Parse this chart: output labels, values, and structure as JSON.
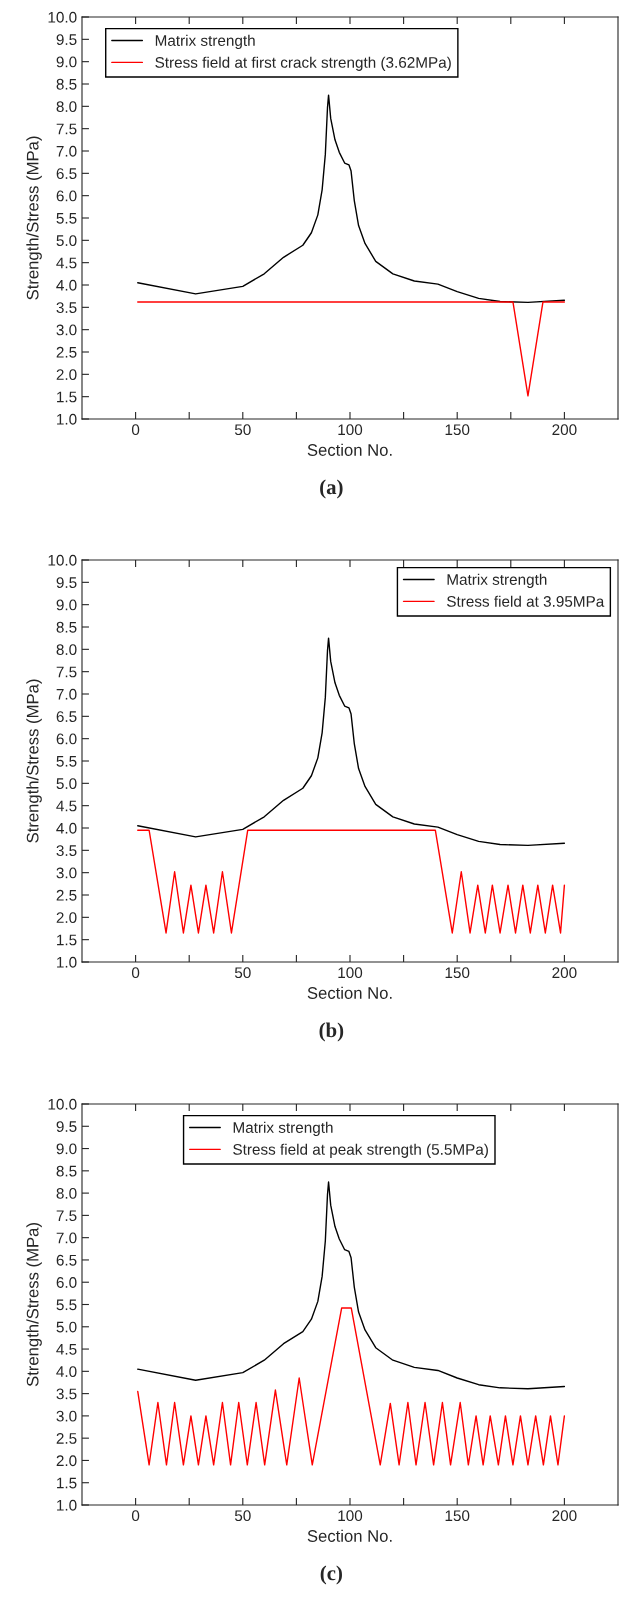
{
  "chart_data": [
    {
      "type": "line",
      "xlabel": "Section No.",
      "ylabel": "Strength/Stress (MPa)",
      "annotations": [
        "(a)"
      ],
      "legend": "top left",
      "xlim": [
        -25,
        225
      ],
      "ylim": [
        1,
        10
      ],
      "xticks": [
        0,
        {
          "value": 25,
          "label": null
        },
        50,
        {
          "value": 75,
          "label": null
        },
        100,
        {
          "value": 125,
          "label": null
        },
        150,
        {
          "value": 175,
          "label": null
        },
        200
      ],
      "yticks": [
        {
          "value": 1.0,
          "label": "1.0"
        },
        1.5,
        {
          "value": 2.0,
          "label": "2.0"
        },
        2.5,
        {
          "value": 3.0,
          "label": "3.0"
        },
        3.5,
        {
          "value": 4.0,
          "label": "4.0"
        },
        4.5,
        {
          "value": 5.0,
          "label": "5.0"
        },
        5.5,
        {
          "value": 6.0,
          "label": "6.0"
        },
        6.5,
        {
          "value": 7.0,
          "label": "7.0"
        },
        7.5,
        {
          "value": 8.0,
          "label": "8.0"
        },
        8.5,
        {
          "value": 9.0,
          "label": "9.0"
        },
        9.5,
        {
          "value": 10.0,
          "label": "10.0"
        }
      ],
      "series": [
        {
          "name": "Matrix strength",
          "color": "#000000",
          "x": [
            1,
            28,
            50,
            60,
            69,
            78,
            82,
            85,
            87,
            88.5,
            89.5,
            90,
            91,
            93,
            95,
            97.5,
            99.5,
            100.5,
            102,
            104,
            107,
            112,
            120,
            130,
            141,
            150,
            160,
            170,
            183,
            200
          ],
          "values": [
            4.05,
            3.8,
            3.97,
            4.25,
            4.62,
            4.89,
            5.17,
            5.57,
            6.13,
            6.93,
            7.97,
            8.25,
            7.73,
            7.25,
            6.97,
            6.73,
            6.69,
            6.55,
            5.89,
            5.33,
            4.93,
            4.53,
            4.25,
            4.09,
            4.02,
            3.85,
            3.7,
            3.63,
            3.61,
            3.66
          ]
        },
        {
          "name": "Stress field at first crack strength (3.62MPa)",
          "color": "#ff0000",
          "x": [
            1,
            176,
            183,
            190,
            200
          ],
          "values": [
            3.62,
            3.62,
            1.52,
            3.62,
            3.62
          ]
        }
      ]
    },
    {
      "type": "line",
      "xlabel": "Section No.",
      "ylabel": "Strength/Stress (MPa)",
      "annotations": [
        "(b)"
      ],
      "legend": "top right",
      "xlim": [
        -25,
        225
      ],
      "ylim": [
        1,
        10
      ],
      "xticks": [
        0,
        {
          "value": 25,
          "label": null
        },
        50,
        {
          "value": 75,
          "label": null
        },
        100,
        {
          "value": 125,
          "label": null
        },
        150,
        {
          "value": 175,
          "label": null
        },
        200
      ],
      "yticks": [
        {
          "value": 1.0,
          "label": "1.0"
        },
        1.5,
        {
          "value": 2.0,
          "label": "2.0"
        },
        2.5,
        {
          "value": 3.0,
          "label": "3.0"
        },
        3.5,
        {
          "value": 4.0,
          "label": "4.0"
        },
        4.5,
        {
          "value": 5.0,
          "label": "5.0"
        },
        5.5,
        {
          "value": 6.0,
          "label": "6.0"
        },
        6.5,
        {
          "value": 7.0,
          "label": "7.0"
        },
        7.5,
        {
          "value": 8.0,
          "label": "8.0"
        },
        8.5,
        {
          "value": 9.0,
          "label": "9.0"
        },
        9.5,
        {
          "value": 10.0,
          "label": "10.0"
        }
      ],
      "series": [
        {
          "name": "Matrix strength",
          "color": "#000000",
          "x": [
            1,
            28,
            50,
            60,
            69,
            78,
            82,
            85,
            87,
            88.5,
            89.5,
            90,
            91,
            93,
            95,
            97.5,
            99.5,
            100.5,
            102,
            104,
            107,
            112,
            120,
            130,
            141,
            150,
            160,
            170,
            183,
            200
          ],
          "values": [
            4.05,
            3.8,
            3.97,
            4.25,
            4.62,
            4.89,
            5.17,
            5.57,
            6.13,
            6.93,
            7.97,
            8.25,
            7.73,
            7.25,
            6.97,
            6.73,
            6.69,
            6.55,
            5.89,
            5.33,
            4.93,
            4.53,
            4.25,
            4.09,
            4.02,
            3.85,
            3.7,
            3.63,
            3.61,
            3.66
          ]
        },
        {
          "name": "Stress field at 3.95MPa",
          "color": "#ff0000",
          "x": [
            1,
            6.3,
            14.2,
            18.2,
            22.3,
            25.8,
            29.3,
            32.8,
            36.4,
            40.5,
            44.7,
            52.3,
            139.8,
            147.7,
            151.9,
            156,
            159.6,
            163.1,
            166.4,
            170,
            173.7,
            177.2,
            180.6,
            184.1,
            187.6,
            191.1,
            194.5,
            198.2,
            200
          ],
          "values": [
            3.95,
            3.95,
            1.65,
            3.02,
            1.65,
            2.72,
            1.65,
            2.72,
            1.65,
            3.02,
            1.65,
            3.95,
            3.95,
            1.65,
            3.02,
            1.65,
            2.72,
            1.65,
            2.72,
            1.65,
            2.72,
            1.65,
            2.72,
            1.65,
            2.72,
            1.65,
            2.72,
            1.65,
            2.72
          ]
        }
      ]
    },
    {
      "type": "line",
      "xlabel": "Section No.",
      "ylabel": "Strength/Stress (MPa)",
      "annotations": [
        "(c)"
      ],
      "legend": "top",
      "xlim": [
        -25,
        225
      ],
      "ylim": [
        1,
        10
      ],
      "xticks": [
        0,
        {
          "value": 25,
          "label": null
        },
        50,
        {
          "value": 75,
          "label": null
        },
        100,
        {
          "value": 125,
          "label": null
        },
        150,
        {
          "value": 175,
          "label": null
        },
        200
      ],
      "yticks": [
        {
          "value": 1.0,
          "label": "1.0"
        },
        1.5,
        {
          "value": 2.0,
          "label": "2.0"
        },
        2.5,
        {
          "value": 3.0,
          "label": "3.0"
        },
        3.5,
        {
          "value": 4.0,
          "label": "4.0"
        },
        4.5,
        {
          "value": 5.0,
          "label": "5.0"
        },
        5.5,
        {
          "value": 6.0,
          "label": "6.0"
        },
        6.5,
        {
          "value": 7.0,
          "label": "7.0"
        },
        7.5,
        {
          "value": 8.0,
          "label": "8.0"
        },
        8.5,
        {
          "value": 9.0,
          "label": "9.0"
        },
        9.5,
        {
          "value": 10.0,
          "label": "10.0"
        }
      ],
      "series": [
        {
          "name": "Matrix strength",
          "color": "#000000",
          "x": [
            1,
            28,
            50,
            60,
            69,
            78,
            82,
            85,
            87,
            88.5,
            89.5,
            90,
            91,
            93,
            95,
            97.5,
            99.5,
            100.5,
            102,
            104,
            107,
            112,
            120,
            130,
            141,
            150,
            160,
            170,
            183,
            200
          ],
          "values": [
            4.05,
            3.8,
            3.97,
            4.25,
            4.62,
            4.89,
            5.17,
            5.57,
            6.13,
            6.93,
            7.97,
            8.25,
            7.73,
            7.25,
            6.97,
            6.73,
            6.69,
            6.55,
            5.89,
            5.33,
            4.93,
            4.53,
            4.25,
            4.09,
            4.02,
            3.85,
            3.7,
            3.63,
            3.61,
            3.66
          ]
        },
        {
          "name": "Stress field at peak strength (5.5MPa)",
          "color": "#ff0000",
          "x": [
            1,
            6.3,
            10.4,
            14.4,
            18.2,
            22.3,
            25.8,
            29.3,
            32.8,
            36.4,
            40.5,
            44.3,
            48.1,
            52.1,
            56.2,
            60.2,
            65.2,
            70.5,
            76.3,
            82.4,
            96.1,
            100.6,
            114.1,
            118.8,
            122.9,
            127,
            130.8,
            135,
            139,
            143.1,
            146.9,
            151.4,
            155.2,
            158.8,
            162.1,
            165.4,
            169.2,
            172.5,
            176,
            179.5,
            183,
            186.6,
            190.2,
            193.5,
            197,
            200
          ],
          "values": [
            3.55,
            1.9,
            3.3,
            1.9,
            3.3,
            1.9,
            3.0,
            1.9,
            3.0,
            1.9,
            3.3,
            1.9,
            3.3,
            1.9,
            3.3,
            1.9,
            3.58,
            1.9,
            3.85,
            1.9,
            5.42,
            5.42,
            1.9,
            3.28,
            1.9,
            3.3,
            1.9,
            3.3,
            1.9,
            3.3,
            1.9,
            3.3,
            1.9,
            3.0,
            1.9,
            3.0,
            1.9,
            3.0,
            1.9,
            3.0,
            1.9,
            3.0,
            1.9,
            3.0,
            1.9,
            3.0
          ]
        }
      ]
    }
  ]
}
